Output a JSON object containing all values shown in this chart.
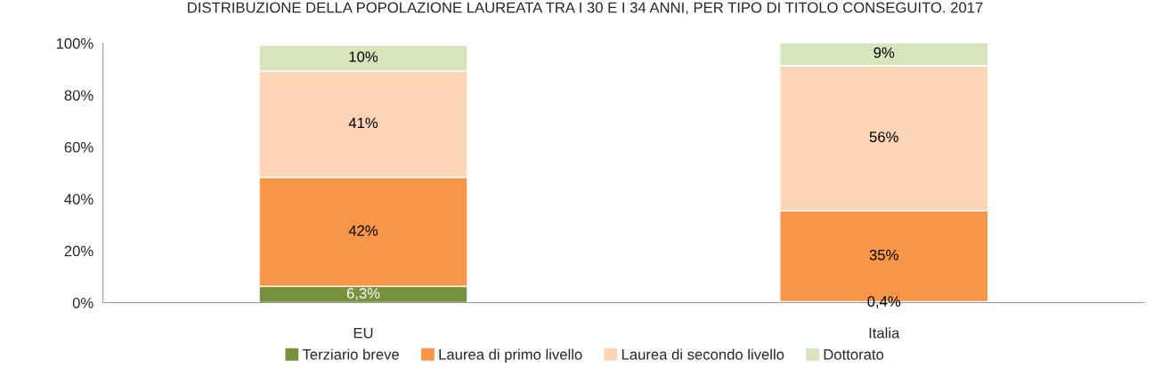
{
  "chart_data": {
    "type": "bar",
    "stacked": true,
    "title": "DISTRIBUZIONE DELLA POPOLAZIONE LAUREATA TRA I 30 E I 34 ANNI, PER TIPO DI TITOLO CONSEGUITO. 2017",
    "categories": [
      "EU",
      "Italia"
    ],
    "series": [
      {
        "name": "Terziario breve",
        "color": "#76923c",
        "values": [
          6.3,
          0.4
        ],
        "value_labels": [
          "6,3%",
          "0,4%"
        ]
      },
      {
        "name": "Laurea di primo livello",
        "color": "#f79646",
        "values": [
          42,
          35
        ],
        "value_labels": [
          "42%",
          "35%"
        ]
      },
      {
        "name": "Laurea di secondo livello",
        "color": "#fbd5b5",
        "values": [
          41,
          56
        ],
        "value_labels": [
          "41%",
          "56%"
        ]
      },
      {
        "name": "Dottorato",
        "color": "#d7e4bc",
        "values": [
          10,
          9
        ],
        "value_labels": [
          "10%",
          "9%"
        ]
      }
    ],
    "ylim": [
      0,
      100
    ],
    "yticks": [
      {
        "value": 0,
        "label": "0%"
      },
      {
        "value": 20,
        "label": "20%"
      },
      {
        "value": 40,
        "label": "40%"
      },
      {
        "value": 60,
        "label": "60%"
      },
      {
        "value": 80,
        "label": "80%"
      },
      {
        "value": 100,
        "label": "100%"
      }
    ],
    "grid": false,
    "legend": "bottom"
  }
}
